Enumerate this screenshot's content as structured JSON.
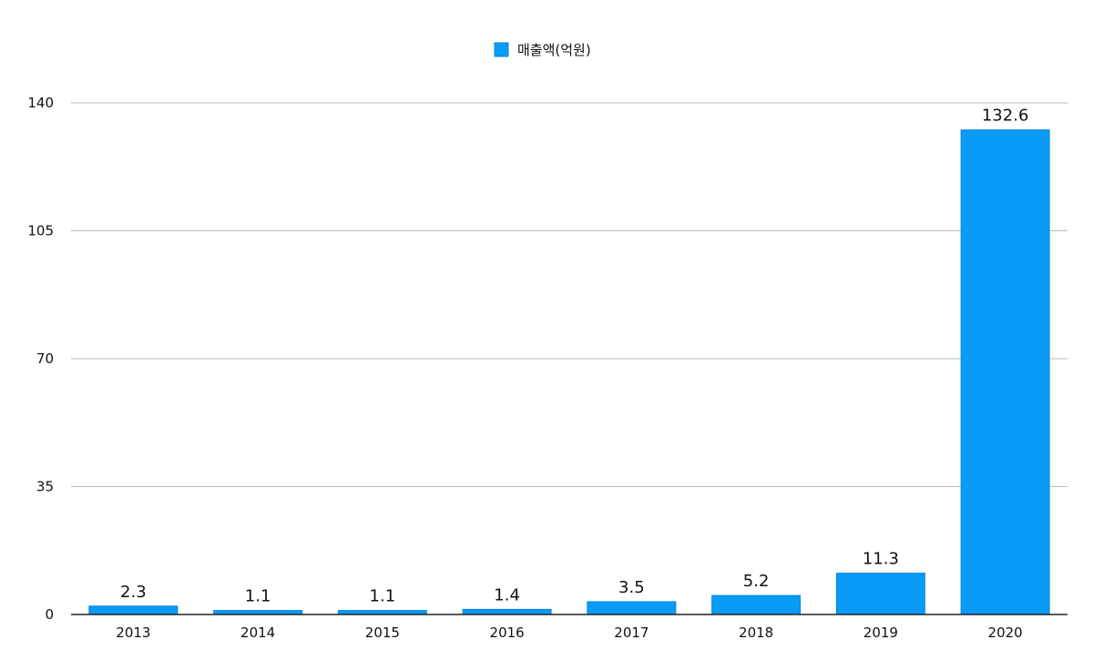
{
  "chart_data": {
    "type": "bar",
    "categories": [
      "2013",
      "2014",
      "2015",
      "2016",
      "2017",
      "2018",
      "2019",
      "2020"
    ],
    "series": [
      {
        "name": "매출액(억원)",
        "values": [
          2.3,
          1.1,
          1.1,
          1.4,
          3.5,
          5.2,
          11.3,
          132.6
        ]
      }
    ],
    "data_labels": [
      "2.3",
      "1.1",
      "1.1",
      "1.4",
      "3.5",
      "5.2",
      "11.3",
      "132.6"
    ],
    "y_ticks": [
      "0",
      "35",
      "70",
      "105",
      "140"
    ],
    "ylim": [
      0,
      140
    ],
    "grid": true,
    "legend_position": "top-center",
    "title": "",
    "xlabel": "",
    "ylabel": "",
    "colors": {
      "bar": "#0a9bf7",
      "bar_edge": "#0a86d8",
      "grid": "#b9b9b9",
      "axis": "#222222"
    }
  }
}
